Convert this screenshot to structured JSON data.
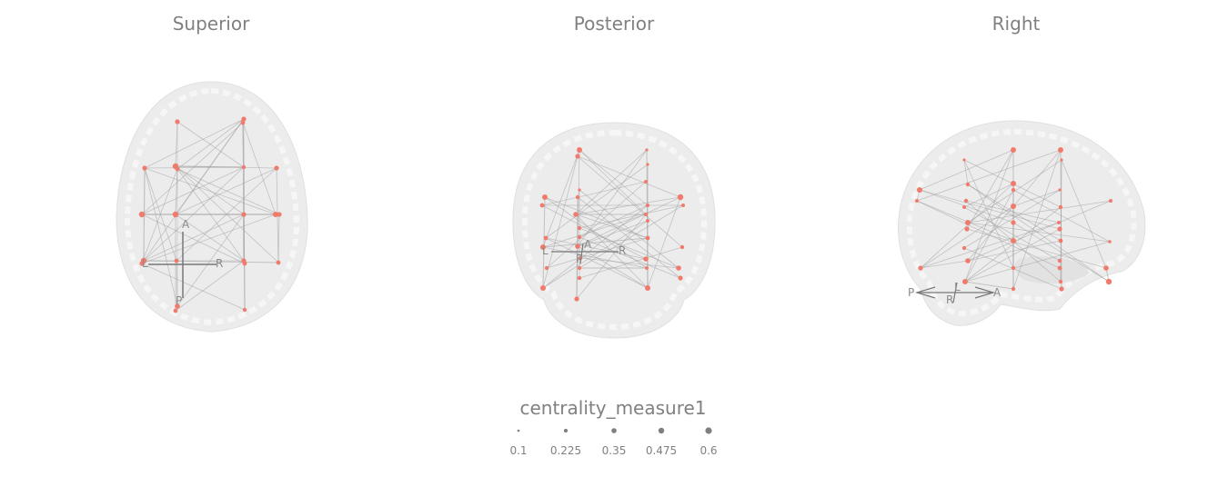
{
  "views": [
    {
      "title": "Superior",
      "axes": {
        "up": "A",
        "down": "P",
        "left": "L",
        "right": "R"
      }
    },
    {
      "title": "Posterior",
      "axes": {
        "up": "A",
        "down": "P",
        "left": "L",
        "right": "R"
      }
    },
    {
      "title": "Right",
      "axes": {
        "up": "L",
        "down": "R",
        "left": "P",
        "right": "A"
      }
    }
  ],
  "legend": {
    "title": "centrality_measure1",
    "items": [
      "0.1",
      "0.225",
      "0.35",
      "0.475",
      "0.6"
    ]
  },
  "colors": {
    "node": "#f07b6c",
    "edge": "#9e9e9e",
    "brain": "#e6e6e6",
    "text": "#808080"
  }
}
